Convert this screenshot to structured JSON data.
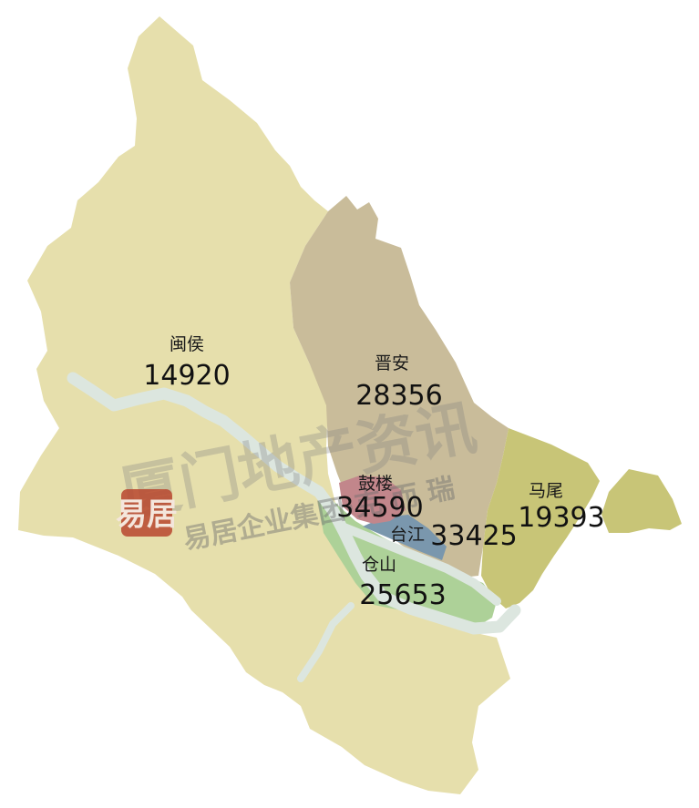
{
  "map": {
    "colors": {
      "minhou": "#e6dfac",
      "jinan": "#c9bc9a",
      "gulou": "#c2868b",
      "taijiang": "#7a97ad",
      "cangshan": "#add198",
      "mawei": "#c8c577",
      "river": "#dce6df"
    },
    "districts": [
      {
        "id": "minhou",
        "name": "闽侯",
        "value": "14920"
      },
      {
        "id": "jinan",
        "name": "晋安",
        "value": "28356"
      },
      {
        "id": "gulou",
        "name": "鼓楼",
        "value": "34590"
      },
      {
        "id": "taijiang",
        "name": "台江",
        "value": "33425"
      },
      {
        "id": "cangshan",
        "name": "仓山",
        "value": "25653"
      },
      {
        "id": "mawei",
        "name": "马尾",
        "value": "19393"
      }
    ]
  },
  "watermark": {
    "title": "厦门地产资讯",
    "subtitle": "易居企业集团·克 而 瑞",
    "seal": "易居"
  }
}
